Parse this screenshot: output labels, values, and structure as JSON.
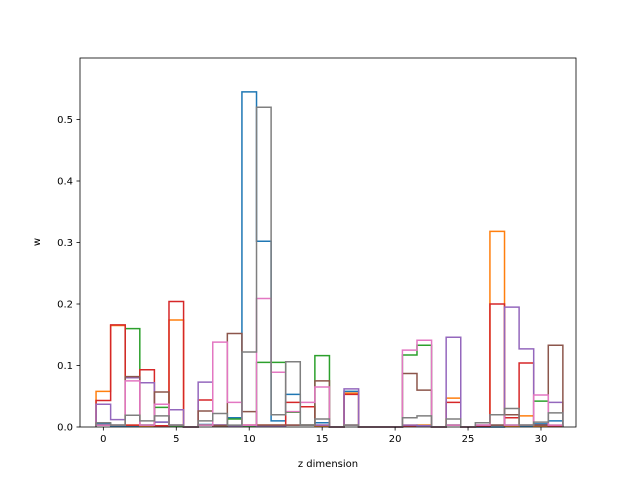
{
  "chart_data": {
    "type": "step",
    "xlabel": "z dimension",
    "ylabel": "w",
    "xlim": [
      -1.6,
      32.4
    ],
    "ylim": [
      0,
      0.6
    ],
    "xticks": [
      0,
      5,
      10,
      15,
      20,
      25,
      30
    ],
    "yticks": [
      0.0,
      0.1,
      0.2,
      0.3,
      0.4,
      0.5
    ],
    "ytick_labels": [
      "0.0",
      "0.1",
      "0.2",
      "0.3",
      "0.4",
      "0.5"
    ],
    "x": [
      0,
      1,
      2,
      3,
      4,
      5,
      6,
      7,
      8,
      9,
      10,
      11,
      12,
      13,
      14,
      15,
      16,
      17,
      18,
      19,
      20,
      21,
      22,
      23,
      24,
      25,
      26,
      27,
      28,
      29,
      30,
      31
    ],
    "series": [
      {
        "color": "#1f77b4",
        "values": [
          0.005,
          0.002,
          0.002,
          0.003,
          0.008,
          0.003,
          0.0,
          0.004,
          0.003,
          0.015,
          0.545,
          0.302,
          0.01,
          0.053,
          0.003,
          0.007,
          0.0,
          0.058,
          0.0,
          0.0,
          0.0,
          0.002,
          0.003,
          0.0,
          0.003,
          0.0,
          0.0,
          0.0,
          0.003,
          0.002,
          0.005,
          0.01
        ]
      },
      {
        "color": "#ff7f0e",
        "values": [
          0.058,
          0.165,
          0.003,
          0.002,
          0.002,
          0.174,
          0.0,
          0.003,
          0.003,
          0.002,
          0.003,
          0.003,
          0.003,
          0.003,
          0.003,
          0.002,
          0.0,
          0.055,
          0.0,
          0.0,
          0.0,
          0.003,
          0.003,
          0.0,
          0.047,
          0.0,
          0.002,
          0.318,
          0.002,
          0.018,
          0.002,
          0.002
        ]
      },
      {
        "color": "#2ca02c",
        "values": [
          0.003,
          0.003,
          0.16,
          0.003,
          0.032,
          0.002,
          0.0,
          0.003,
          0.003,
          0.013,
          0.002,
          0.105,
          0.105,
          0.024,
          0.003,
          0.116,
          0.0,
          0.003,
          0.0,
          0.0,
          0.0,
          0.117,
          0.133,
          0.0,
          0.003,
          0.0,
          0.002,
          0.003,
          0.003,
          0.003,
          0.042,
          0.003
        ]
      },
      {
        "color": "#d62728",
        "values": [
          0.043,
          0.166,
          0.003,
          0.093,
          0.002,
          0.204,
          0.0,
          0.044,
          0.003,
          0.002,
          0.003,
          0.003,
          0.003,
          0.04,
          0.033,
          0.003,
          0.0,
          0.053,
          0.0,
          0.0,
          0.0,
          0.002,
          0.002,
          0.0,
          0.04,
          0.0,
          0.002,
          0.2,
          0.015,
          0.104,
          0.003,
          0.002
        ]
      },
      {
        "color": "#9467bd",
        "values": [
          0.037,
          0.012,
          0.08,
          0.072,
          0.008,
          0.028,
          0.0,
          0.073,
          0.003,
          0.002,
          0.003,
          0.002,
          0.002,
          0.003,
          0.003,
          0.003,
          0.0,
          0.062,
          0.0,
          0.0,
          0.0,
          0.003,
          0.002,
          0.0,
          0.146,
          0.0,
          0.003,
          0.003,
          0.195,
          0.127,
          0.003,
          0.04
        ]
      },
      {
        "color": "#8c564b",
        "values": [
          0.003,
          0.003,
          0.082,
          0.003,
          0.057,
          0.003,
          0.0,
          0.026,
          0.002,
          0.152,
          0.025,
          0.003,
          0.003,
          0.003,
          0.003,
          0.075,
          0.0,
          0.003,
          0.0,
          0.0,
          0.0,
          0.087,
          0.06,
          0.0,
          0.003,
          0.0,
          0.003,
          0.003,
          0.02,
          0.003,
          0.003,
          0.133
        ]
      },
      {
        "color": "#e377c2",
        "values": [
          0.003,
          0.003,
          0.075,
          0.003,
          0.037,
          0.003,
          0.0,
          0.003,
          0.138,
          0.04,
          0.003,
          0.209,
          0.089,
          0.025,
          0.04,
          0.065,
          0.0,
          0.003,
          0.0,
          0.0,
          0.0,
          0.125,
          0.141,
          0.0,
          0.003,
          0.0,
          0.003,
          0.02,
          0.003,
          0.003,
          0.052,
          0.003
        ]
      },
      {
        "color": "#7f7f7f",
        "values": [
          0.007,
          0.003,
          0.019,
          0.01,
          0.018,
          0.003,
          0.0,
          0.01,
          0.022,
          0.003,
          0.122,
          0.52,
          0.02,
          0.106,
          0.003,
          0.013,
          0.0,
          0.003,
          0.0,
          0.0,
          0.0,
          0.015,
          0.018,
          0.0,
          0.013,
          0.0,
          0.007,
          0.02,
          0.03,
          0.003,
          0.008,
          0.023
        ]
      }
    ]
  }
}
